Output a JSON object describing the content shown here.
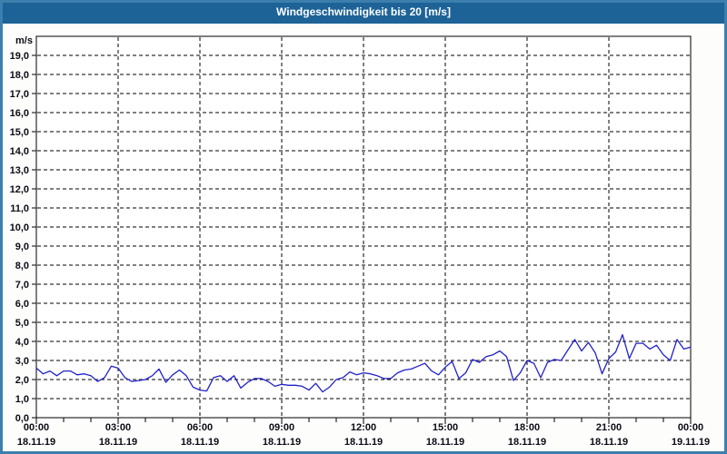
{
  "title_bar": {
    "text": "Windgeschwindigkeit bis 20 [m/s]"
  },
  "colors": {
    "title_bar_bg": "#1d6397",
    "title_text": "#ffffff",
    "window_frame": "#3d7fac",
    "series_line": "#2121c8",
    "grid": "#000000",
    "axis_frame": "#000000",
    "label_text": "#0b0b16",
    "plot_bg": "#ffffff",
    "page_bg": "#fdfdfc"
  },
  "chart_data": {
    "type": "line",
    "title": "Windgeschwindigkeit bis 20 [m/s]",
    "y_unit_label": "m/s",
    "ylim": [
      0,
      20
    ],
    "y_tick_step": 1.0,
    "y_tick_labels": [
      "0,0",
      "1,0",
      "2,0",
      "3,0",
      "4,0",
      "5,0",
      "6,0",
      "7,0",
      "8,0",
      "9,0",
      "10,0",
      "11,0",
      "12,0",
      "13,0",
      "14,0",
      "15,0",
      "16,0",
      "17,0",
      "18,0",
      "19,0"
    ],
    "x_range_hours": [
      0,
      24
    ],
    "x_minor_tick_interval_hours": 1,
    "x_major_ticks": [
      {
        "hour": 0,
        "time": "00:00",
        "date": "18.11.19"
      },
      {
        "hour": 3,
        "time": "03:00",
        "date": "18.11.19"
      },
      {
        "hour": 6,
        "time": "06:00",
        "date": "18.11.19"
      },
      {
        "hour": 9,
        "time": "09:00",
        "date": "18.11.19"
      },
      {
        "hour": 12,
        "time": "12:00",
        "date": "18.11.19"
      },
      {
        "hour": 15,
        "time": "15:00",
        "date": "18.11.19"
      },
      {
        "hour": 18,
        "time": "18:00",
        "date": "18.11.19"
      },
      {
        "hour": 21,
        "time": "21:00",
        "date": "18.11.19"
      },
      {
        "hour": 24,
        "time": "00:00",
        "date": "19.11.19"
      }
    ],
    "grid": "dashed",
    "legend": "none",
    "series": [
      {
        "name": "Windgeschwindigkeit",
        "color": "#2121c8",
        "x_start_hour": 0,
        "x_interval_hours": 0.25,
        "values": [
          2.6,
          2.3,
          2.45,
          2.2,
          2.45,
          2.45,
          2.25,
          2.3,
          2.2,
          1.9,
          2.1,
          2.7,
          2.6,
          2.1,
          1.9,
          1.95,
          2.0,
          2.2,
          2.55,
          1.85,
          2.25,
          2.5,
          2.2,
          1.6,
          1.45,
          1.4,
          2.1,
          2.2,
          1.9,
          2.2,
          1.55,
          1.85,
          2.05,
          2.05,
          1.9,
          1.65,
          1.75,
          1.7,
          1.7,
          1.65,
          1.45,
          1.8,
          1.35,
          1.6,
          2.0,
          2.1,
          2.4,
          2.25,
          2.35,
          2.3,
          2.2,
          2.05,
          2.05,
          2.35,
          2.5,
          2.55,
          2.7,
          2.85,
          2.45,
          2.25,
          2.65,
          2.95,
          2.05,
          2.35,
          3.05,
          2.9,
          3.2,
          3.3,
          3.5,
          3.2,
          1.95,
          2.35,
          3.0,
          2.85,
          2.1,
          2.9,
          3.05,
          3.0,
          3.55,
          4.1,
          3.5,
          3.95,
          3.4,
          2.3,
          3.1,
          3.45,
          4.35,
          3.1,
          3.9,
          3.9,
          3.6,
          3.8,
          3.3,
          3.0,
          4.1,
          3.6,
          3.7
        ]
      }
    ]
  }
}
